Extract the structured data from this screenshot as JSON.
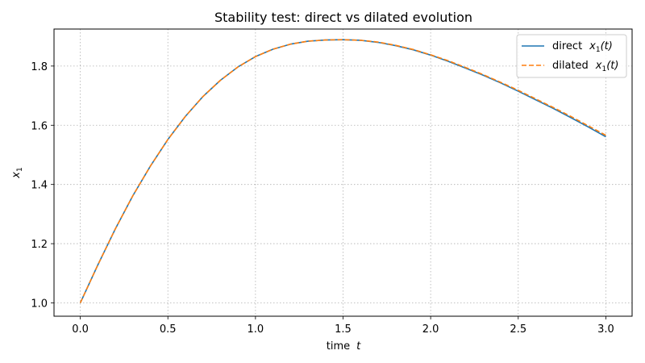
{
  "chart_data": {
    "type": "line",
    "title": "Stability test: direct vs dilated evolution",
    "xlabel": "time",
    "xlabel_var": "t",
    "ylabel": "x",
    "ylabel_sub": "1",
    "xlim": [
      -0.15,
      3.15
    ],
    "ylim": [
      0.955,
      1.925
    ],
    "xticks": [
      0.0,
      0.5,
      1.0,
      1.5,
      2.0,
      2.5,
      3.0
    ],
    "xtick_labels": [
      "0.0",
      "0.5",
      "1.0",
      "1.5",
      "2.0",
      "2.5",
      "3.0"
    ],
    "yticks": [
      1.0,
      1.2,
      1.4,
      1.6,
      1.8
    ],
    "ytick_labels": [
      "1.0",
      "1.2",
      "1.4",
      "1.6",
      "1.8"
    ],
    "grid": true,
    "legend_position": "top-right",
    "x": [
      0.0,
      0.1,
      0.2,
      0.3,
      0.4,
      0.5,
      0.6,
      0.7,
      0.8,
      0.9,
      1.0,
      1.1,
      1.2,
      1.3,
      1.4,
      1.5,
      1.6,
      1.7,
      1.8,
      1.9,
      2.0,
      2.1,
      2.2,
      2.3,
      2.4,
      2.5,
      2.6,
      2.7,
      2.8,
      2.9,
      3.0
    ],
    "series": [
      {
        "name": "direct",
        "name_math_var": "x",
        "name_math_sub": "1",
        "name_math_arg": "(t)",
        "color": "#1f77b4",
        "style": "solid",
        "values": [
          1.0,
          1.128,
          1.25,
          1.362,
          1.462,
          1.552,
          1.63,
          1.697,
          1.752,
          1.797,
          1.832,
          1.857,
          1.874,
          1.884,
          1.888,
          1.889,
          1.887,
          1.88,
          1.869,
          1.855,
          1.837,
          1.816,
          1.793,
          1.769,
          1.743,
          1.715,
          1.686,
          1.657,
          1.626,
          1.594,
          1.561
        ]
      },
      {
        "name": "dilated",
        "name_math_var": "x",
        "name_math_sub": "1",
        "name_math_arg": "(t)",
        "color": "#ff7f0e",
        "style": "dashed",
        "values": [
          1.0,
          1.128,
          1.25,
          1.362,
          1.462,
          1.552,
          1.63,
          1.697,
          1.752,
          1.797,
          1.832,
          1.857,
          1.874,
          1.884,
          1.888,
          1.889,
          1.887,
          1.881,
          1.87,
          1.856,
          1.838,
          1.818,
          1.795,
          1.771,
          1.745,
          1.718,
          1.689,
          1.66,
          1.63,
          1.598,
          1.566
        ]
      }
    ]
  }
}
